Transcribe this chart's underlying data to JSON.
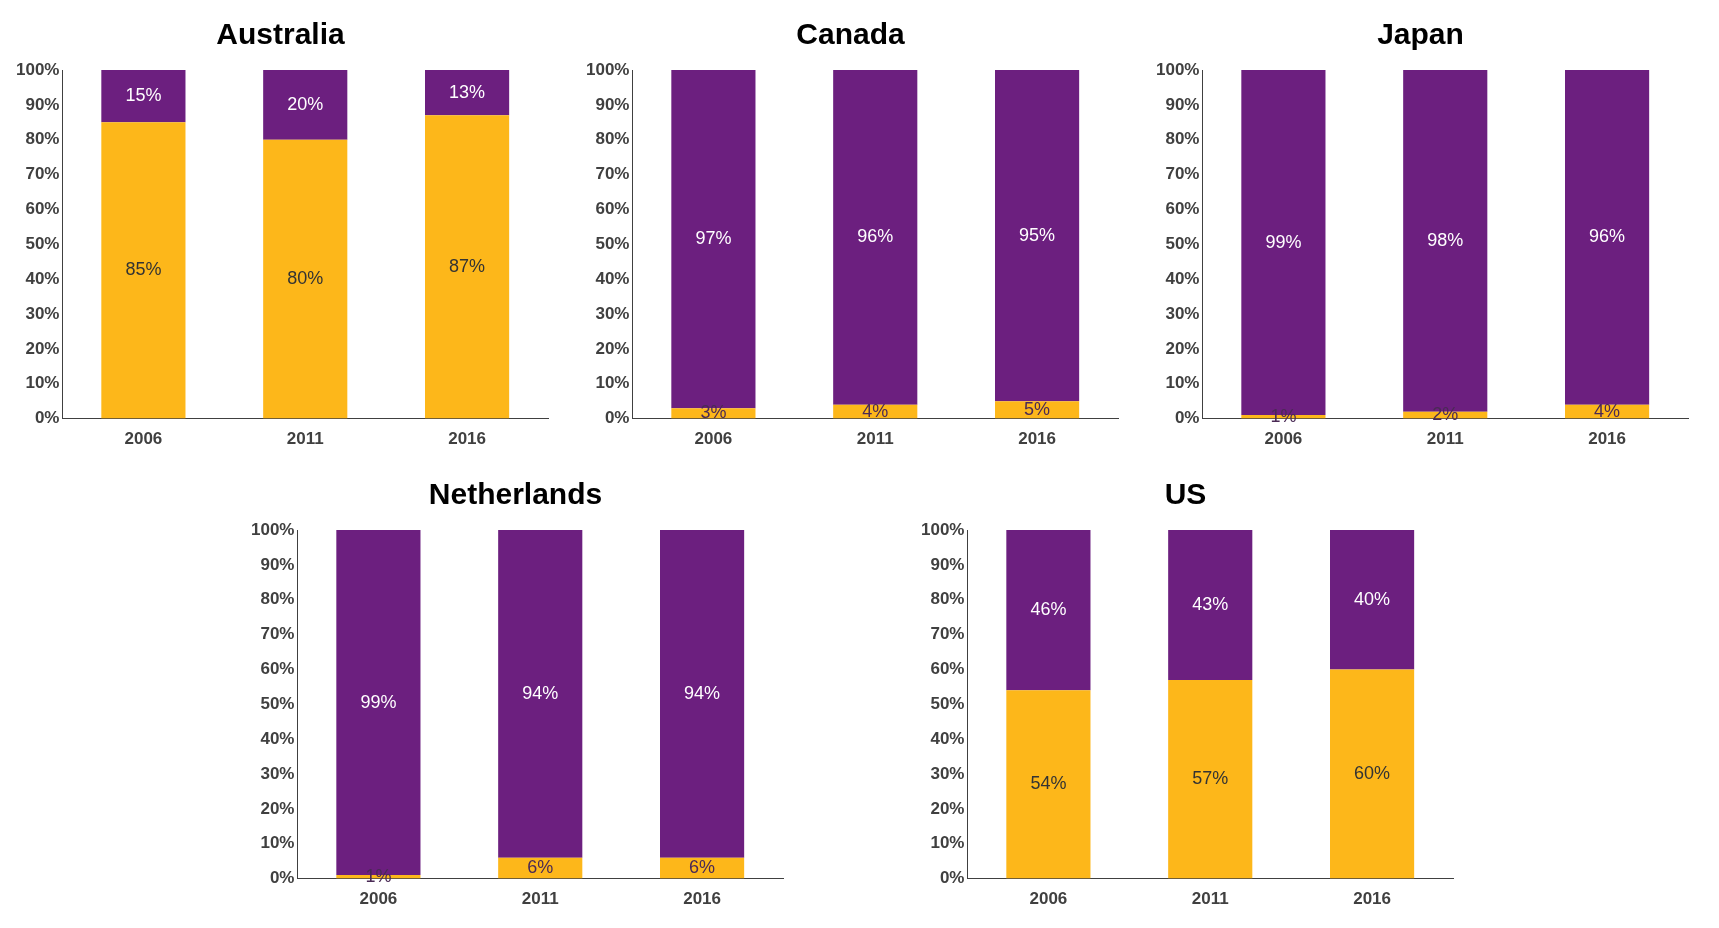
{
  "chart_data": [
    {
      "type": "bar",
      "title": "Australia",
      "categories": [
        "2006",
        "2011",
        "2016"
      ],
      "stacked": true,
      "ylim": [
        0,
        100
      ],
      "yticks": [
        {
          "value": 0,
          "label": "0%"
        },
        {
          "value": 10,
          "label": "10%"
        },
        {
          "value": 20,
          "label": "20%"
        },
        {
          "value": 30,
          "label": "30%"
        },
        {
          "value": 40,
          "label": "40%"
        },
        {
          "value": 50,
          "label": "50%"
        },
        {
          "value": 60,
          "label": "60%"
        },
        {
          "value": 70,
          "label": "70%"
        },
        {
          "value": 80,
          "label": "80%"
        },
        {
          "value": 90,
          "label": "90%"
        },
        {
          "value": 100,
          "label": "100%"
        }
      ],
      "series": [
        {
          "color": "#fdb71a",
          "values": [
            85,
            80,
            87
          ],
          "value_labels": [
            "85%",
            "80%",
            "87%"
          ]
        },
        {
          "color": "#6c1f7f",
          "values": [
            15,
            20,
            13
          ],
          "value_labels": [
            "15%",
            "20%",
            "13%"
          ]
        }
      ]
    },
    {
      "type": "bar",
      "title": "Canada",
      "categories": [
        "2006",
        "2011",
        "2016"
      ],
      "stacked": true,
      "ylim": [
        0,
        100
      ],
      "yticks": [
        {
          "value": 0,
          "label": "0%"
        },
        {
          "value": 10,
          "label": "10%"
        },
        {
          "value": 20,
          "label": "20%"
        },
        {
          "value": 30,
          "label": "30%"
        },
        {
          "value": 40,
          "label": "40%"
        },
        {
          "value": 50,
          "label": "50%"
        },
        {
          "value": 60,
          "label": "60%"
        },
        {
          "value": 70,
          "label": "70%"
        },
        {
          "value": 80,
          "label": "80%"
        },
        {
          "value": 90,
          "label": "90%"
        },
        {
          "value": 100,
          "label": "100%"
        }
      ],
      "series": [
        {
          "color": "#fdb71a",
          "values": [
            3,
            4,
            5
          ],
          "value_labels": [
            "3%",
            "4%",
            "5%"
          ]
        },
        {
          "color": "#6c1f7f",
          "values": [
            97,
            96,
            95
          ],
          "value_labels": [
            "97%",
            "96%",
            "95%"
          ]
        }
      ]
    },
    {
      "type": "bar",
      "title": "Japan",
      "categories": [
        "2006",
        "2011",
        "2016"
      ],
      "stacked": true,
      "ylim": [
        0,
        100
      ],
      "yticks": [
        {
          "value": 0,
          "label": "0%"
        },
        {
          "value": 10,
          "label": "10%"
        },
        {
          "value": 20,
          "label": "20%"
        },
        {
          "value": 30,
          "label": "30%"
        },
        {
          "value": 40,
          "label": "40%"
        },
        {
          "value": 50,
          "label": "50%"
        },
        {
          "value": 60,
          "label": "60%"
        },
        {
          "value": 70,
          "label": "70%"
        },
        {
          "value": 80,
          "label": "80%"
        },
        {
          "value": 90,
          "label": "90%"
        },
        {
          "value": 100,
          "label": "100%"
        }
      ],
      "series": [
        {
          "color": "#fdb71a",
          "values": [
            1,
            2,
            4
          ],
          "value_labels": [
            "1%",
            "2%",
            "4%"
          ]
        },
        {
          "color": "#6c1f7f",
          "values": [
            99,
            98,
            96
          ],
          "value_labels": [
            "99%",
            "98%",
            "96%"
          ]
        }
      ]
    },
    {
      "type": "bar",
      "title": "Netherlands",
      "categories": [
        "2006",
        "2011",
        "2016"
      ],
      "stacked": true,
      "ylim": [
        0,
        100
      ],
      "yticks": [
        {
          "value": 0,
          "label": "0%"
        },
        {
          "value": 10,
          "label": "10%"
        },
        {
          "value": 20,
          "label": "20%"
        },
        {
          "value": 30,
          "label": "30%"
        },
        {
          "value": 40,
          "label": "40%"
        },
        {
          "value": 50,
          "label": "50%"
        },
        {
          "value": 60,
          "label": "60%"
        },
        {
          "value": 70,
          "label": "70%"
        },
        {
          "value": 80,
          "label": "80%"
        },
        {
          "value": 90,
          "label": "90%"
        },
        {
          "value": 100,
          "label": "100%"
        }
      ],
      "series": [
        {
          "color": "#fdb71a",
          "values": [
            1,
            6,
            6
          ],
          "value_labels": [
            "1%",
            "6%",
            "6%"
          ]
        },
        {
          "color": "#6c1f7f",
          "values": [
            99,
            94,
            94
          ],
          "value_labels": [
            "99%",
            "94%",
            "94%"
          ]
        }
      ]
    },
    {
      "type": "bar",
      "title": "US",
      "categories": [
        "2006",
        "2011",
        "2016"
      ],
      "stacked": true,
      "ylim": [
        0,
        100
      ],
      "yticks": [
        {
          "value": 0,
          "label": "0%"
        },
        {
          "value": 10,
          "label": "10%"
        },
        {
          "value": 20,
          "label": "20%"
        },
        {
          "value": 30,
          "label": "30%"
        },
        {
          "value": 40,
          "label": "40%"
        },
        {
          "value": 50,
          "label": "50%"
        },
        {
          "value": 60,
          "label": "60%"
        },
        {
          "value": 70,
          "label": "70%"
        },
        {
          "value": 80,
          "label": "80%"
        },
        {
          "value": 90,
          "label": "90%"
        },
        {
          "value": 100,
          "label": "100%"
        }
      ],
      "series": [
        {
          "color": "#fdb71a",
          "values": [
            54,
            57,
            60
          ],
          "value_labels": [
            "54%",
            "57%",
            "60%"
          ]
        },
        {
          "color": "#6c1f7f",
          "values": [
            46,
            43,
            40
          ],
          "value_labels": [
            "46%",
            "43%",
            "40%"
          ]
        }
      ]
    }
  ]
}
